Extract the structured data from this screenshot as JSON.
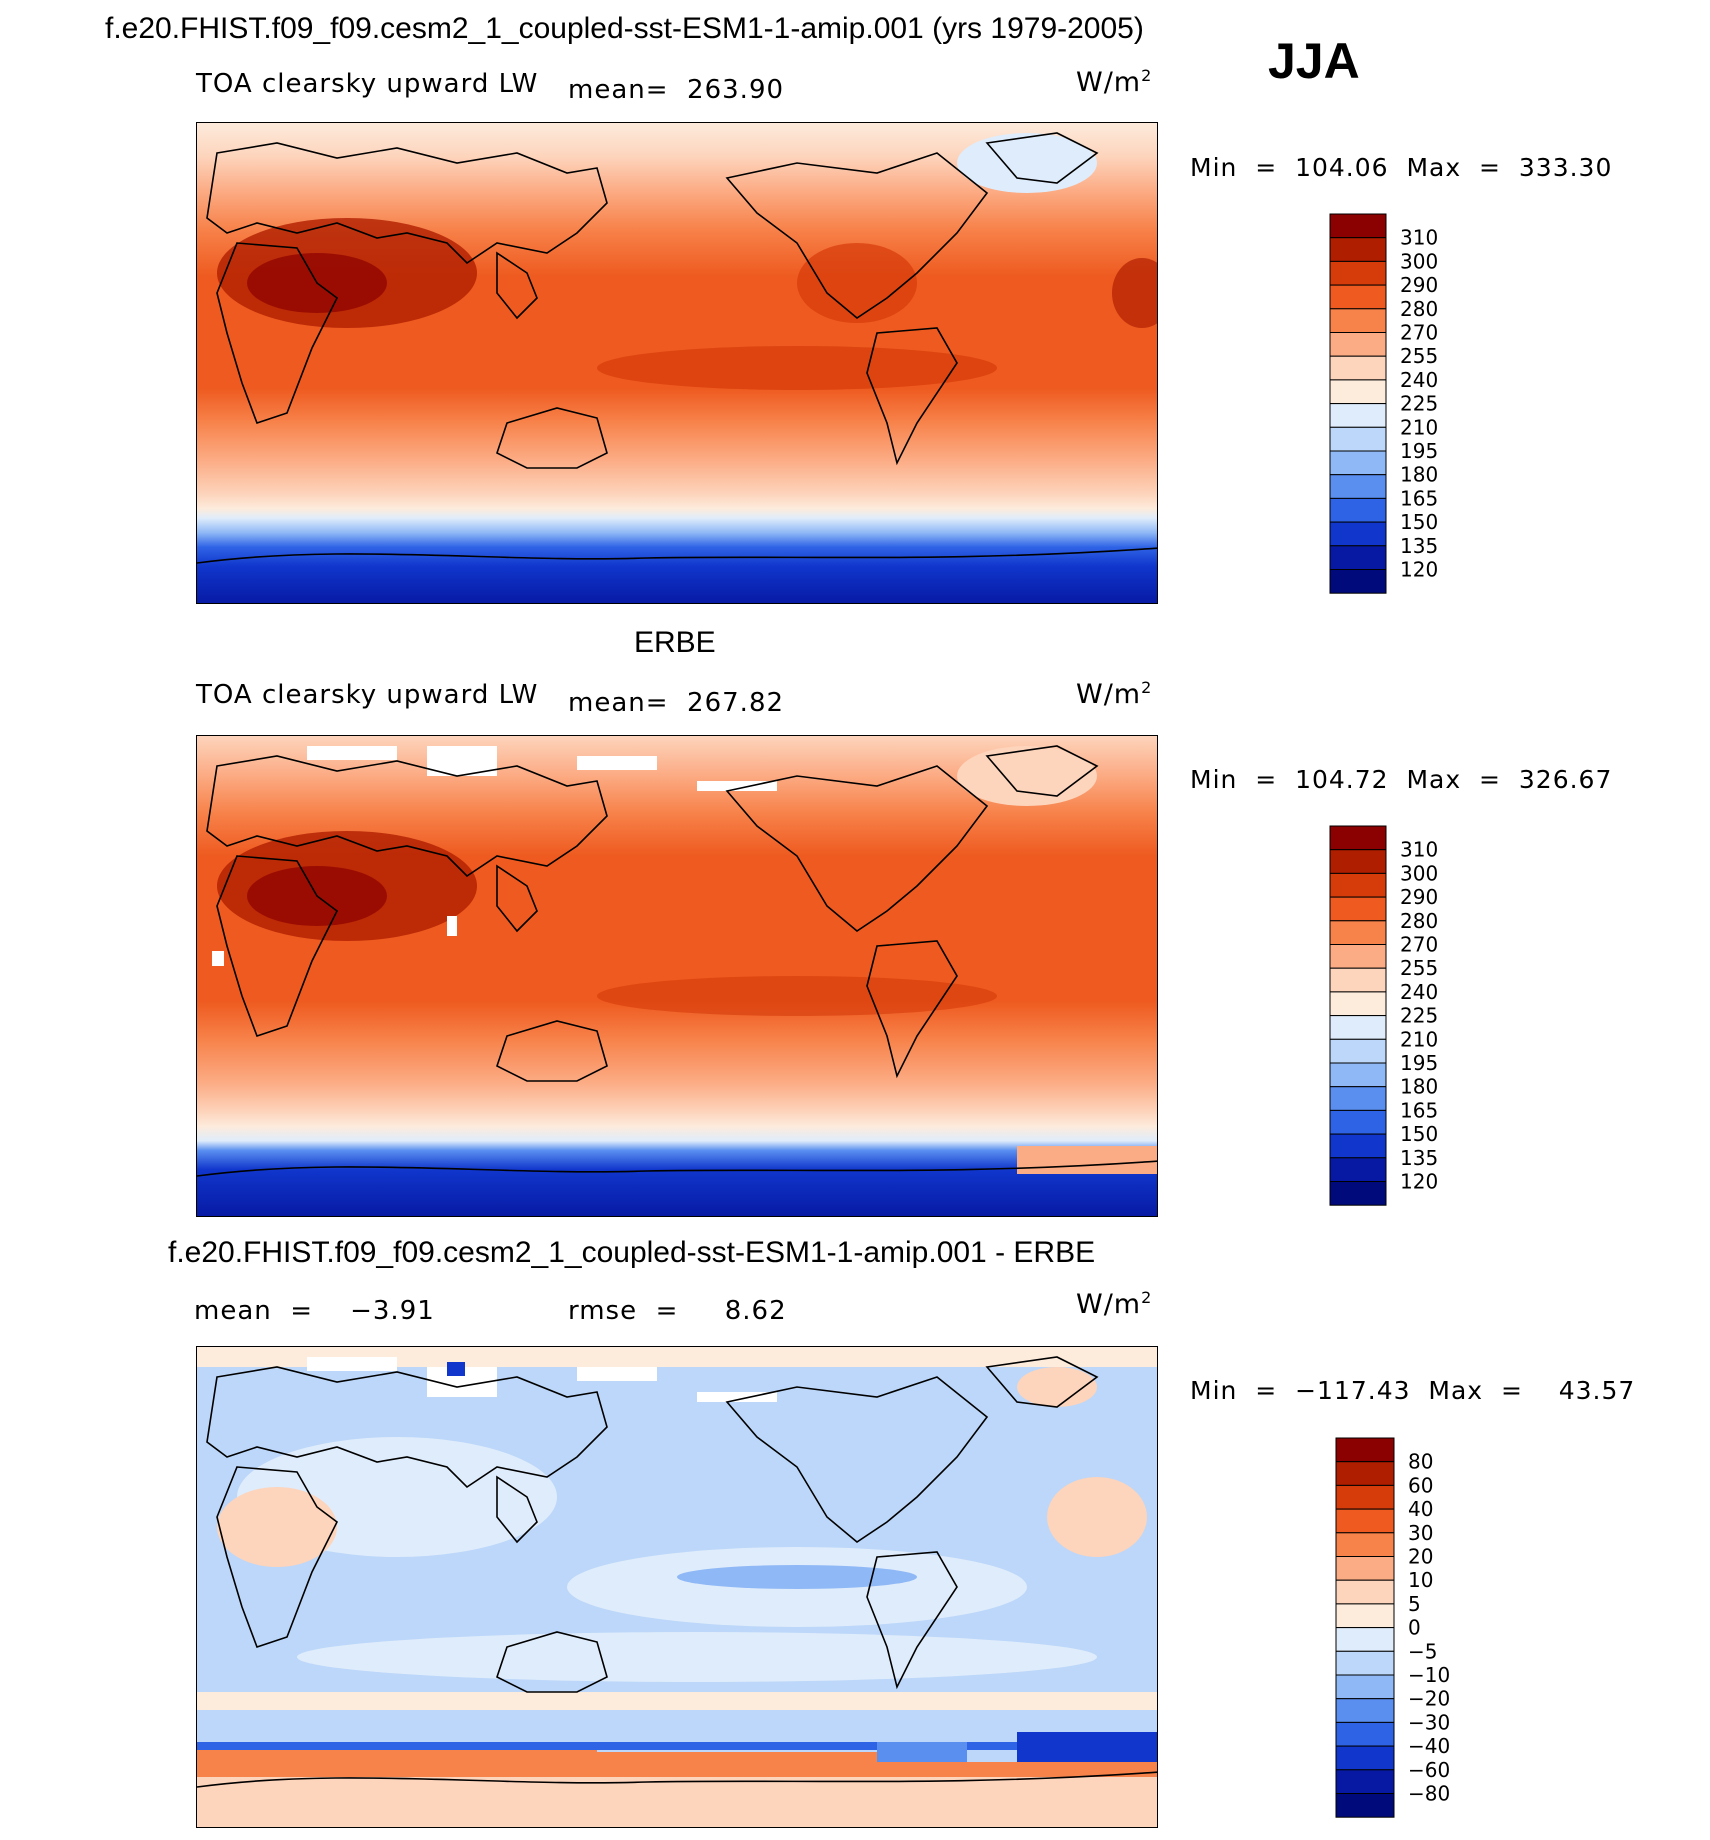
{
  "figure": {
    "title": "f.e20.FHIST.f09_f09.cesm2_1_coupled-sst-ESM1-1-amip.001 (yrs 1979-2005)",
    "season": "JJA"
  },
  "panels": [
    {
      "id": "model",
      "title": "",
      "left_label": "TOA clearsky upward LW",
      "stat1": "mean=  263.90",
      "stat2": "",
      "units": "W/m",
      "units_sup": "2",
      "minmax": "Min  =  104.06  Max  =  333.30"
    },
    {
      "id": "obs",
      "title": "ERBE",
      "left_label": "TOA clearsky upward LW",
      "stat1": "mean=  267.82",
      "stat2": "",
      "units": "W/m",
      "units_sup": "2",
      "minmax": "Min  =  104.72  Max  =  326.67"
    },
    {
      "id": "diff",
      "title": "f.e20.FHIST.f09_f09.cesm2_1_coupled-sst-ESM1-1-amip.001 - ERBE",
      "left_label": "mean  =    −3.91",
      "stat1": "rmse  =     8.62",
      "stat2": "",
      "units": "W/m",
      "units_sup": "2",
      "minmax": "Min  =  −117.43  Max  =    43.57"
    }
  ],
  "chart_data": [
    {
      "type": "heatmap",
      "name": "model",
      "title": "f.e20.FHIST.f09_f09.cesm2_1_coupled-sst-ESM1-1-amip.001 (yrs 1979-2005)",
      "variable": "TOA clearsky upward LW",
      "units": "W/m2",
      "mean": 263.9,
      "min": 104.06,
      "max": 333.3,
      "contour_levels": [
        120,
        135,
        150,
        165,
        180,
        195,
        210,
        225,
        240,
        255,
        270,
        280,
        290,
        300,
        310
      ],
      "colorbar_labels": [
        "310",
        "300",
        "290",
        "280",
        "270",
        "255",
        "240",
        "225",
        "210",
        "195",
        "180",
        "165",
        "150",
        "135",
        "120"
      ],
      "colors": [
        "#8b0000",
        "#b01e00",
        "#d63b0a",
        "#ee5a1f",
        "#f7824a",
        "#fcac85",
        "#fdd4bc",
        "#fdebdc",
        "#dfecfb",
        "#bcd7f9",
        "#8fb8f6",
        "#5a8ff0",
        "#2f63e6",
        "#1036cc",
        "#0719a3",
        "#000a7a"
      ]
    },
    {
      "type": "heatmap",
      "name": "obs",
      "title": "ERBE",
      "variable": "TOA clearsky upward LW",
      "units": "W/m2",
      "mean": 267.82,
      "min": 104.72,
      "max": 326.67,
      "contour_levels": [
        120,
        135,
        150,
        165,
        180,
        195,
        210,
        225,
        240,
        255,
        270,
        280,
        290,
        300,
        310
      ],
      "colorbar_labels": [
        "310",
        "300",
        "290",
        "280",
        "270",
        "255",
        "240",
        "225",
        "210",
        "195",
        "180",
        "165",
        "150",
        "135",
        "120"
      ],
      "colors": [
        "#8b0000",
        "#b01e00",
        "#d63b0a",
        "#ee5a1f",
        "#f7824a",
        "#fcac85",
        "#fdd4bc",
        "#fdebdc",
        "#dfecfb",
        "#bcd7f9",
        "#8fb8f6",
        "#5a8ff0",
        "#2f63e6",
        "#1036cc",
        "#0719a3",
        "#000a7a"
      ]
    },
    {
      "type": "heatmap",
      "name": "diff",
      "title": "f.e20.FHIST.f09_f09.cesm2_1_coupled-sst-ESM1-1-amip.001 - ERBE",
      "units": "W/m2",
      "mean": -3.91,
      "rmse": 8.62,
      "min": -117.43,
      "max": 43.57,
      "contour_levels": [
        -80,
        -60,
        -40,
        -30,
        -20,
        -10,
        -5,
        0,
        5,
        10,
        20,
        30,
        40,
        60,
        80
      ],
      "colorbar_labels": [
        "80",
        "60",
        "40",
        "30",
        "20",
        "10",
        "5",
        "0",
        "−5",
        "−10",
        "−20",
        "−30",
        "−40",
        "−60",
        "−80"
      ],
      "colors": [
        "#8b0000",
        "#b01e00",
        "#d63b0a",
        "#ee5a1f",
        "#f7824a",
        "#fcac85",
        "#fdd4bc",
        "#fdebdc",
        "#dfecfb",
        "#bcd7f9",
        "#8fb8f6",
        "#5a8ff0",
        "#2f63e6",
        "#1036cc",
        "#0719a3",
        "#000a7a"
      ]
    }
  ]
}
